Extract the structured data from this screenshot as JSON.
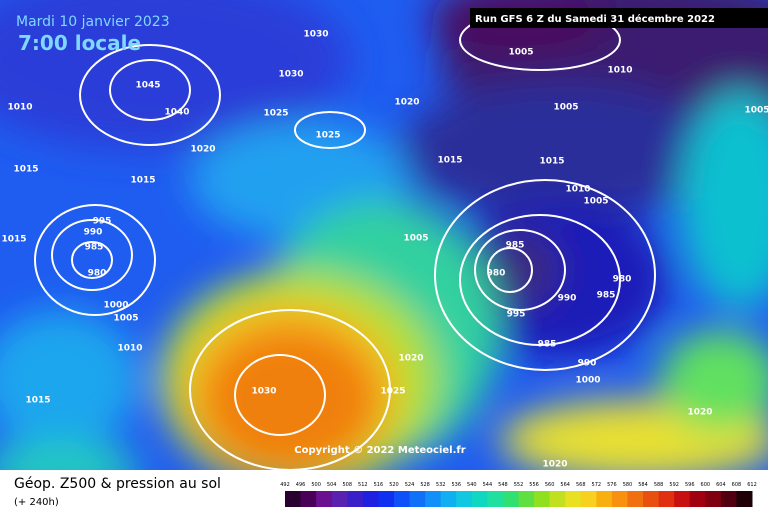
{
  "header": {
    "date": "Mardi 10 janvier 2023",
    "time": "7:00 locale",
    "run": "Run GFS 6 Z du Samedi 31 décembre 2022"
  },
  "copyright": "Copyright © 2022 Meteociel.fr",
  "footer": {
    "title": "Géop. Z500 & pression au sol",
    "lead": "(+ 240h)"
  },
  "legend": {
    "labels": [
      492,
      496,
      500,
      504,
      508,
      512,
      516,
      520,
      524,
      528,
      532,
      536,
      540,
      544,
      548,
      552,
      556,
      560,
      564,
      568,
      572,
      576,
      580,
      584,
      588,
      592,
      596,
      600,
      604,
      608,
      612
    ]
  },
  "isobars": [
    1030,
    1030,
    1045,
    1040,
    1025,
    1025,
    1020,
    1020,
    1010,
    1015,
    1015,
    1015,
    1005,
    1010,
    1005,
    1005,
    1015,
    1010,
    1005,
    1005,
    995,
    990,
    985,
    980,
    1015,
    1000,
    1005,
    1010,
    1015,
    985,
    980,
    980,
    985,
    990,
    995,
    985,
    990,
    1000,
    1020,
    1025,
    1030,
    1020,
    1020
  ]
}
